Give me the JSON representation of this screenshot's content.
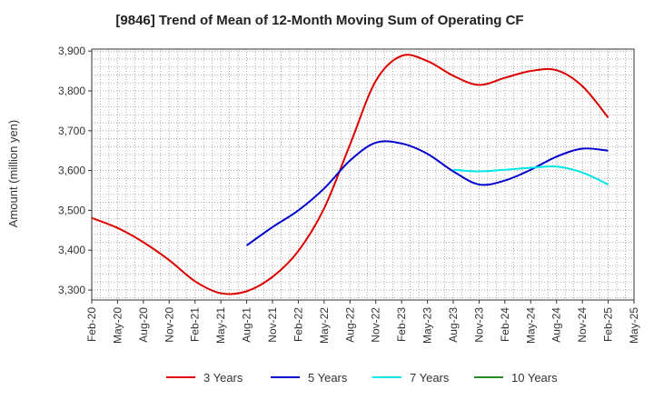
{
  "chart_data": {
    "type": "line",
    "title": "[9846]  Trend of Mean of 12-Month Moving Sum of Operating CF",
    "xlabel": "",
    "ylabel": "Amount (million yen)",
    "ylim": [
      3275,
      3905
    ],
    "yticks": [
      3300,
      3400,
      3500,
      3600,
      3700,
      3800,
      3900
    ],
    "ytick_labels": [
      "3,300",
      "3,400",
      "3,500",
      "3,600",
      "3,700",
      "3,800",
      "3,900"
    ],
    "categories": [
      "Feb-20",
      "May-20",
      "Aug-20",
      "Nov-20",
      "Feb-21",
      "May-21",
      "Aug-21",
      "Nov-21",
      "Feb-22",
      "May-22",
      "Aug-22",
      "Nov-22",
      "Feb-23",
      "May-23",
      "Aug-23",
      "Nov-23",
      "Feb-24",
      "May-24",
      "Aug-24",
      "Nov-24",
      "Feb-25",
      "May-25"
    ],
    "grid": true,
    "legend_position": "bottom",
    "series": [
      {
        "name": "3 Years",
        "color": "#dd0000",
        "values": [
          3481,
          3456,
          3420,
          3375,
          3322,
          3292,
          3297,
          3333,
          3398,
          3505,
          3665,
          3825,
          3888,
          3875,
          3838,
          3815,
          3833,
          3850,
          3852,
          3812,
          3733,
          null
        ]
      },
      {
        "name": "5 Years",
        "color": "#0000cc",
        "values": [
          null,
          null,
          null,
          null,
          null,
          null,
          3412,
          3458,
          3500,
          3555,
          3625,
          3670,
          3668,
          3642,
          3598,
          3565,
          3575,
          3602,
          3635,
          3655,
          3650,
          null
        ]
      },
      {
        "name": "7 Years",
        "color": "#00e5e5",
        "values": [
          null,
          null,
          null,
          null,
          null,
          null,
          null,
          null,
          null,
          null,
          null,
          null,
          null,
          null,
          3602,
          3598,
          3602,
          3607,
          3610,
          3595,
          3565,
          null
        ]
      },
      {
        "name": "10 Years",
        "color": "#228b22",
        "values": [
          null,
          null,
          null,
          null,
          null,
          null,
          null,
          null,
          null,
          null,
          null,
          null,
          null,
          null,
          null,
          null,
          null,
          null,
          null,
          null,
          null,
          null
        ]
      }
    ]
  }
}
